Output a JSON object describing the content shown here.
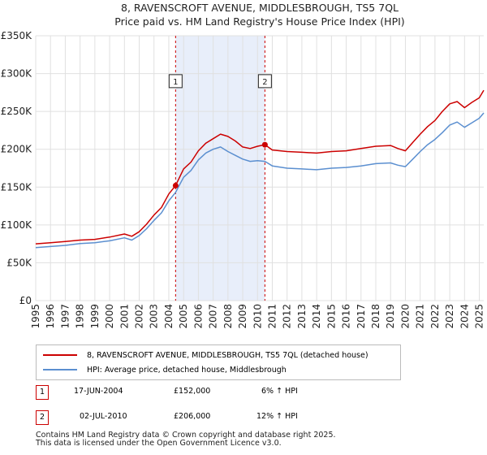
{
  "chart_data": {
    "type": "line",
    "title": "8, RAVENSCROFT AVENUE, MIDDLESBROUGH, TS5 7QL",
    "subtitle": "Price paid vs. HM Land Registry's House Price Index (HPI)",
    "xlim": [
      1995,
      2025.3
    ],
    "ylim": [
      0,
      350000
    ],
    "y_ticks": [
      0,
      50000,
      100000,
      150000,
      200000,
      250000,
      300000,
      350000
    ],
    "y_tick_labels": [
      "£0",
      "£50K",
      "£100K",
      "£150K",
      "£200K",
      "£250K",
      "£300K",
      "£350K"
    ],
    "x_ticks": [
      1995,
      1996,
      1997,
      1998,
      1999,
      2000,
      2001,
      2002,
      2003,
      2004,
      2005,
      2006,
      2007,
      2008,
      2009,
      2010,
      2011,
      2012,
      2013,
      2014,
      2015,
      2016,
      2017,
      2018,
      2019,
      2020,
      2021,
      2022,
      2023,
      2024,
      2025
    ],
    "x_tick_labels": [
      "1995",
      "1996",
      "1997",
      "1998",
      "1999",
      "2000",
      "2001",
      "2002",
      "2003",
      "2004",
      "2005",
      "2006",
      "2007",
      "2008",
      "2009",
      "2010",
      "2011",
      "2012",
      "2013",
      "2014",
      "2015",
      "2016",
      "2017",
      "2018",
      "2019",
      "2020",
      "2021",
      "2022",
      "2023",
      "2024",
      "2025"
    ],
    "shaded_range": [
      2004.46,
      2010.5
    ],
    "series": [
      {
        "name": "8, RAVENSCROFT AVENUE, MIDDLESBROUGH, TS5 7QL (detached house)",
        "color": "#cc0000",
        "x": [
          1995,
          1996,
          1997,
          1998,
          1999,
          2000,
          2001,
          2001.5,
          2002,
          2002.5,
          2003,
          2003.5,
          2004,
          2004.46,
          2005,
          2005.5,
          2006,
          2006.5,
          2007,
          2007.5,
          2008,
          2008.5,
          2009,
          2009.5,
          2010,
          2010.5,
          2011,
          2012,
          2013,
          2014,
          2015,
          2016,
          2017,
          2018,
          2019,
          2019.5,
          2020,
          2020.5,
          2021,
          2021.5,
          2022,
          2022.5,
          2023,
          2023.5,
          2024,
          2024.5,
          2025,
          2025.3
        ],
        "values": [
          75000,
          76500,
          78000,
          80000,
          81000,
          84000,
          88000,
          85000,
          91000,
          101000,
          113000,
          123000,
          141000,
          152000,
          174000,
          183000,
          198000,
          208000,
          214000,
          220000,
          217000,
          211000,
          203000,
          201000,
          204000,
          206000,
          199000,
          197000,
          196000,
          195000,
          197000,
          198000,
          201000,
          204000,
          205000,
          201000,
          198000,
          209000,
          220000,
          230000,
          238000,
          250000,
          260000,
          263000,
          255000,
          262000,
          268000,
          278000
        ]
      },
      {
        "name": "HPI: Average price, detached house, Middlesbrough",
        "color": "#5b8fd0",
        "x": [
          1995,
          1996,
          1997,
          1998,
          1999,
          2000,
          2001,
          2001.5,
          2002,
          2002.5,
          2003,
          2003.5,
          2004,
          2004.46,
          2005,
          2005.5,
          2006,
          2006.5,
          2007,
          2007.5,
          2008,
          2008.5,
          2009,
          2009.5,
          2010,
          2010.5,
          2011,
          2012,
          2013,
          2014,
          2015,
          2016,
          2017,
          2018,
          2019,
          2019.5,
          2020,
          2020.5,
          2021,
          2021.5,
          2022,
          2022.5,
          2023,
          2023.5,
          2024,
          2024.5,
          2025,
          2025.3
        ],
        "values": [
          70000,
          71500,
          73000,
          75500,
          76500,
          79000,
          83000,
          80000,
          86000,
          95000,
          106000,
          116000,
          132000,
          143000,
          163000,
          172000,
          186000,
          195000,
          200000,
          203000,
          197000,
          192000,
          187000,
          184000,
          185000,
          184000,
          178000,
          175000,
          174000,
          173000,
          175000,
          176000,
          178000,
          181000,
          182000,
          179000,
          177000,
          187000,
          197000,
          206000,
          213000,
          222000,
          232000,
          236000,
          229000,
          235000,
          241000,
          248000
        ]
      }
    ],
    "annotations": [
      {
        "label": "1",
        "x": 2004.46,
        "price": 152000,
        "label_y": 290000
      },
      {
        "label": "2",
        "x": 2010.5,
        "price": 206000,
        "label_y": 290000
      }
    ]
  },
  "legend": {
    "entries": [
      {
        "label": "8, RAVENSCROFT AVENUE, MIDDLESBROUGH, TS5 7QL (detached house)",
        "color": "#cc0000"
      },
      {
        "label": "HPI: Average price, detached house, Middlesbrough",
        "color": "#5b8fd0"
      }
    ]
  },
  "transactions": [
    {
      "num": "1",
      "date": "17-JUN-2004",
      "price": "£152,000",
      "hpi": "6% ↑ HPI"
    },
    {
      "num": "2",
      "date": "02-JUL-2010",
      "price": "£206,000",
      "hpi": "12% ↑ HPI"
    }
  ],
  "footer": {
    "line1": "Contains HM Land Registry data © Crown copyright and database right 2025.",
    "line2": "This data is licensed under the Open Government Licence v3.0."
  }
}
